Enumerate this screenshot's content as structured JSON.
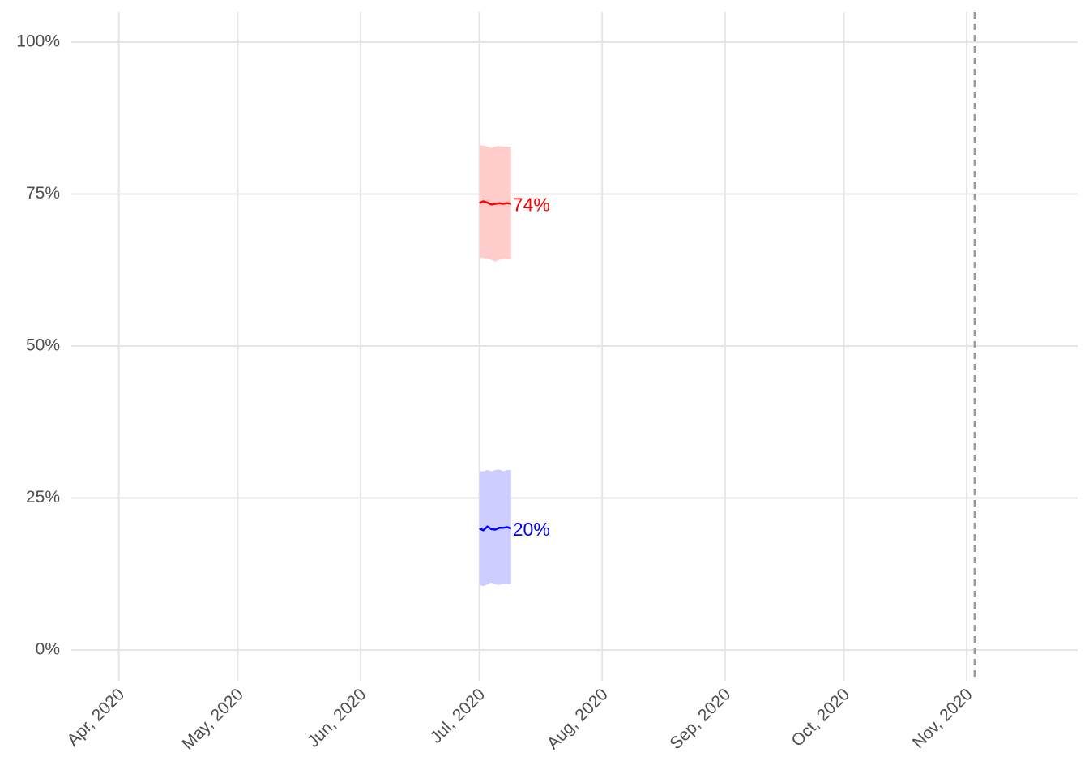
{
  "chart_data": {
    "type": "line",
    "title": "",
    "xlabel": "",
    "ylabel": "",
    "x_ticks": [
      "Apr, 2020",
      "May, 2020",
      "Jun, 2020",
      "Jul, 2020",
      "Aug, 2020",
      "Sep, 2020",
      "Oct, 2020",
      "Nov, 2020"
    ],
    "y_ticks": [
      "0%",
      "25%",
      "50%",
      "75%",
      "100%"
    ],
    "ylim": [
      0,
      1
    ],
    "xlim": [
      "2020-03-20",
      "2020-11-29"
    ],
    "grid": true,
    "legend": "none",
    "reference_line": {
      "date": "2020-11-03",
      "style": "dashed",
      "color": "#999999"
    },
    "series": [
      {
        "color": "#ff0000",
        "band_color": "#ffcccc",
        "end_label": "74%",
        "points": [
          {
            "date": "2020-07-01",
            "value": 0.735,
            "lower": 0.645,
            "upper": 0.83
          },
          {
            "date": "2020-07-02",
            "value": 0.738,
            "lower": 0.645,
            "upper": 0.83
          },
          {
            "date": "2020-07-03",
            "value": 0.736,
            "lower": 0.643,
            "upper": 0.828
          },
          {
            "date": "2020-07-04",
            "value": 0.733,
            "lower": 0.642,
            "upper": 0.826
          },
          {
            "date": "2020-07-05",
            "value": 0.734,
            "lower": 0.639,
            "upper": 0.828
          },
          {
            "date": "2020-07-06",
            "value": 0.735,
            "lower": 0.642,
            "upper": 0.829
          },
          {
            "date": "2020-07-07",
            "value": 0.734,
            "lower": 0.643,
            "upper": 0.828
          },
          {
            "date": "2020-07-08",
            "value": 0.735,
            "lower": 0.643,
            "upper": 0.828
          },
          {
            "date": "2020-07-09",
            "value": 0.734,
            "lower": 0.643,
            "upper": 0.828
          }
        ]
      },
      {
        "color": "#0000ff",
        "band_color": "#ccccff",
        "end_label": "20%",
        "points": [
          {
            "date": "2020-07-01",
            "value": 0.2,
            "lower": 0.107,
            "upper": 0.294
          },
          {
            "date": "2020-07-02",
            "value": 0.197,
            "lower": 0.105,
            "upper": 0.294
          },
          {
            "date": "2020-07-03",
            "value": 0.203,
            "lower": 0.108,
            "upper": 0.296
          },
          {
            "date": "2020-07-04",
            "value": 0.199,
            "lower": 0.111,
            "upper": 0.294
          },
          {
            "date": "2020-07-05",
            "value": 0.198,
            "lower": 0.108,
            "upper": 0.296
          },
          {
            "date": "2020-07-06",
            "value": 0.201,
            "lower": 0.107,
            "upper": 0.297
          },
          {
            "date": "2020-07-07",
            "value": 0.201,
            "lower": 0.109,
            "upper": 0.294
          },
          {
            "date": "2020-07-08",
            "value": 0.202,
            "lower": 0.108,
            "upper": 0.296
          },
          {
            "date": "2020-07-09",
            "value": 0.2,
            "lower": 0.108,
            "upper": 0.296
          }
        ]
      }
    ]
  }
}
